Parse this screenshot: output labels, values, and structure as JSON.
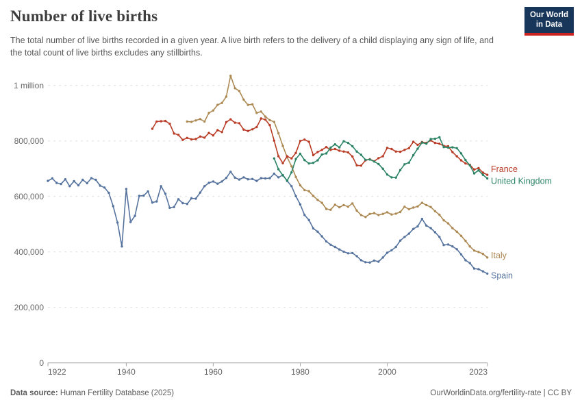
{
  "header": {
    "title": "Number of live births",
    "subtitle": "The total number of live births recorded in a given year. A live birth refers to the delivery of a child displaying any sign of life, and the total count of live births excludes any stillbirths."
  },
  "logo": {
    "line1": "Our World",
    "line2": "in Data",
    "bg_color": "#18355A",
    "stripe_color": "#CB2420"
  },
  "footer": {
    "source_label": "Data source:",
    "source_text": " Human Fertility Database (2025)",
    "credit": "OurWorldinData.org/fertility-rate | CC BY"
  },
  "chart_data": {
    "type": "line",
    "title": "Number of live births",
    "xlabel": "",
    "ylabel": "",
    "grid": "dashed-horizontal",
    "legend_position": "right-of-line-ends",
    "x_axis": {
      "range": [
        1922,
        2023
      ],
      "ticks": [
        1922,
        1940,
        1960,
        1980,
        2000,
        2023
      ]
    },
    "y_axis": {
      "range": [
        0,
        1050000
      ],
      "ticks": [
        0,
        200000,
        400000,
        600000,
        800000,
        1000000
      ],
      "tick_labels": [
        "0",
        "200,000",
        "400,000",
        "600,000",
        "800,000",
        "1 million"
      ]
    },
    "series": [
      {
        "name": "France",
        "color": "#B93D27",
        "start_year": 1946,
        "end_year": 2023,
        "values": [
          844000,
          870000,
          871000,
          872000,
          862000,
          827000,
          822000,
          804000,
          811000,
          806000,
          807000,
          816000,
          812000,
          829000,
          820000,
          839000,
          832000,
          868000,
          878000,
          866000,
          864000,
          841000,
          836000,
          842000,
          850000,
          881000,
          877000,
          857000,
          801000,
          745000,
          720000,
          745000,
          737000,
          757000,
          800000,
          805000,
          797000,
          749000,
          760000,
          768000,
          778000,
          768000,
          771000,
          765000,
          762000,
          759000,
          744000,
          712000,
          711000,
          730000,
          734000,
          727000,
          738000,
          745000,
          775000,
          771000,
          762000,
          761000,
          768000,
          774000,
          797000,
          786000,
          796000,
          793000,
          802000,
          793000,
          790000,
          782000,
          781000,
          760000,
          745000,
          730000,
          719000,
          714000,
          697000,
          702000,
          686000,
          678000
        ]
      },
      {
        "name": "United Kingdom",
        "color": "#2C8465",
        "start_year": 1974,
        "end_year": 2023,
        "values": [
          737000,
          698000,
          676000,
          657000,
          687000,
          735000,
          754000,
          731000,
          719000,
          721000,
          730000,
          751000,
          755000,
          776000,
          788000,
          777000,
          799000,
          793000,
          781000,
          762000,
          750000,
          732000,
          733000,
          726000,
          717000,
          700000,
          679000,
          669000,
          668000,
          695000,
          716000,
          722000,
          749000,
          772000,
          794000,
          790000,
          807000,
          808000,
          813000,
          778000,
          776000,
          777000,
          774000,
          755000,
          731000,
          712000,
          683000,
          694000,
          678000,
          665000
        ]
      },
      {
        "name": "Italy",
        "color": "#AD8A54",
        "start_year": 1954,
        "end_year": 2023,
        "values": [
          870000,
          869000,
          874000,
          879000,
          870000,
          901000,
          910000,
          930000,
          937000,
          960000,
          1035000,
          990000,
          980000,
          949000,
          930000,
          932000,
          901000,
          906000,
          888000,
          875000,
          869000,
          828000,
          782000,
          741000,
          709000,
          670000,
          640000,
          623000,
          619000,
          602000,
          588000,
          577000,
          555000,
          552000,
          570000,
          561000,
          569000,
          563000,
          575000,
          549000,
          533000,
          526000,
          537000,
          540000,
          533000,
          537000,
          543000,
          535000,
          538000,
          544000,
          563000,
          554000,
          560000,
          564000,
          577000,
          569000,
          562000,
          547000,
          534000,
          514000,
          503000,
          486000,
          473000,
          458000,
          440000,
          420000,
          405000,
          400000,
          393000,
          380000
        ]
      },
      {
        "name": "Spain",
        "color": "#56739E",
        "start_year": 1922,
        "end_year": 2023,
        "values": [
          656000,
          665000,
          649000,
          645000,
          662000,
          637000,
          655000,
          640000,
          660000,
          648000,
          666000,
          660000,
          639000,
          632000,
          613000,
          565000,
          506000,
          420000,
          627000,
          508000,
          530000,
          602000,
          603000,
          618000,
          578000,
          582000,
          637000,
          610000,
          559000,
          562000,
          590000,
          576000,
          573000,
          593000,
          592000,
          614000,
          637000,
          649000,
          654000,
          646000,
          654000,
          667000,
          689000,
          668000,
          661000,
          669000,
          662000,
          663000,
          656000,
          666000,
          665000,
          666000,
          682000,
          669000,
          677000,
          656000,
          637000,
          601000,
          571000,
          533000,
          515000,
          485000,
          473000,
          456000,
          438000,
          426000,
          418000,
          409000,
          401000,
          395000,
          396000,
          385000,
          370000,
          363000,
          362000,
          369000,
          365000,
          380000,
          397000,
          406000,
          418000,
          441000,
          454000,
          466000,
          483000,
          492000,
          519000,
          495000,
          486000,
          471000,
          454000,
          425000,
          427000,
          420000,
          410000,
          391000,
          370000,
          360000,
          340000,
          338000,
          330000,
          322000
        ]
      }
    ]
  }
}
